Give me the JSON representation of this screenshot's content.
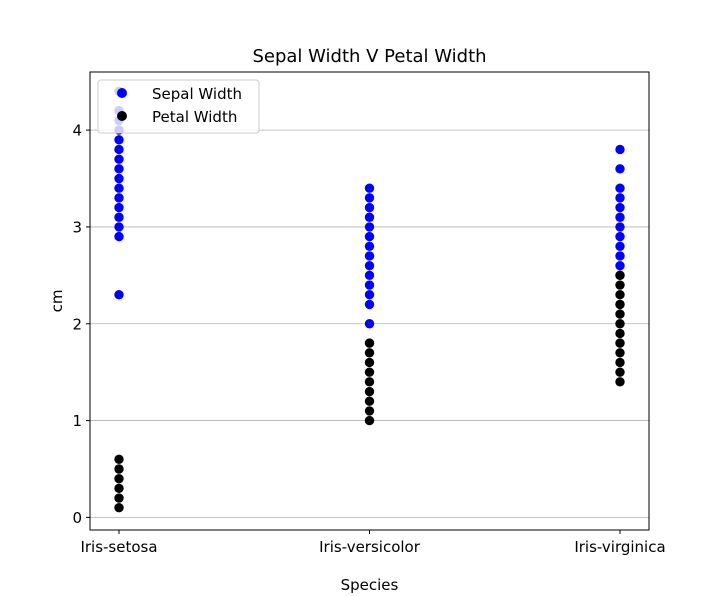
{
  "chart_data": {
    "type": "scatter",
    "title": "Sepal Width V Petal Width",
    "xlabel": "Species",
    "ylabel": "cm",
    "categories": [
      "Iris-setosa",
      "Iris-versicolor",
      "Iris-virginica"
    ],
    "ylim": [
      -0.13,
      4.6
    ],
    "yticks": [
      0,
      1,
      2,
      3,
      4
    ],
    "grid": "y-major",
    "legend_position": "top-left",
    "series": [
      {
        "name": "Sepal Width",
        "color": "#0000ff",
        "points": [
          {
            "category": "Iris-setosa",
            "values": [
              2.3,
              2.9,
              3.0,
              3.1,
              3.2,
              3.3,
              3.4,
              3.5,
              3.6,
              3.7,
              3.8,
              3.9,
              4.0,
              4.1,
              4.2,
              4.4
            ]
          },
          {
            "category": "Iris-versicolor",
            "values": [
              2.0,
              2.2,
              2.3,
              2.4,
              2.5,
              2.6,
              2.7,
              2.8,
              2.9,
              3.0,
              3.1,
              3.2,
              3.3,
              3.4
            ]
          },
          {
            "category": "Iris-virginica",
            "values": [
              2.2,
              2.5,
              2.6,
              2.7,
              2.8,
              2.9,
              3.0,
              3.1,
              3.2,
              3.3,
              3.4,
              3.6,
              3.8
            ]
          }
        ]
      },
      {
        "name": "Petal Width",
        "color": "#000000",
        "points": [
          {
            "category": "Iris-setosa",
            "values": [
              0.1,
              0.2,
              0.3,
              0.4,
              0.5,
              0.6
            ]
          },
          {
            "category": "Iris-versicolor",
            "values": [
              1.0,
              1.1,
              1.2,
              1.3,
              1.4,
              1.5,
              1.6,
              1.7,
              1.8
            ]
          },
          {
            "category": "Iris-virginica",
            "values": [
              1.4,
              1.5,
              1.6,
              1.7,
              1.8,
              1.9,
              2.0,
              2.1,
              2.2,
              2.3,
              2.4,
              2.5
            ]
          }
        ]
      }
    ]
  }
}
